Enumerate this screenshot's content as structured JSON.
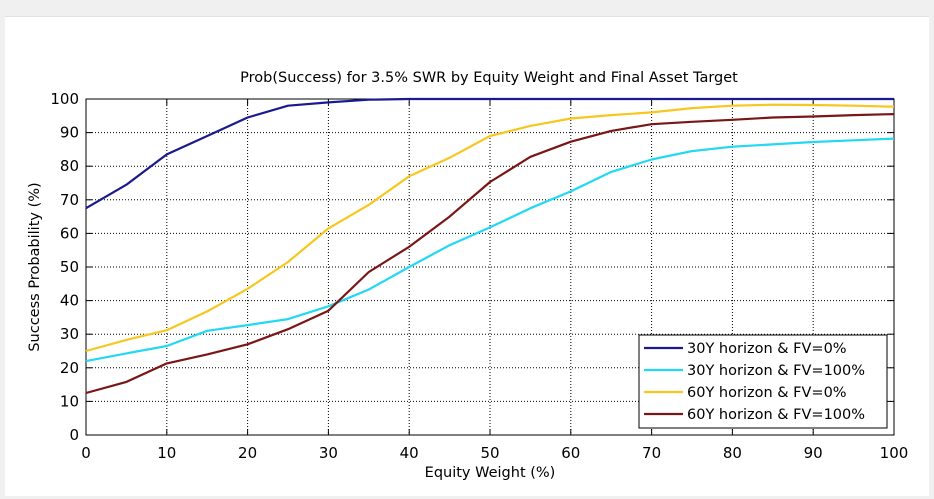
{
  "chart_data": {
    "type": "line",
    "title": "Prob(Success) for 3.5% SWR by Equity Weight and Final Asset Target",
    "xlabel": "Equity Weight (%)",
    "ylabel": "Success Probability (%)",
    "xlim": [
      0,
      100
    ],
    "ylim": [
      0,
      100
    ],
    "xticks": [
      0,
      10,
      20,
      30,
      40,
      50,
      60,
      70,
      80,
      90,
      100
    ],
    "yticks": [
      0,
      10,
      20,
      30,
      40,
      50,
      60,
      70,
      80,
      90,
      100
    ],
    "grid": true,
    "legend_position": "bottom-right",
    "x": [
      0,
      5,
      10,
      15,
      20,
      25,
      30,
      35,
      40,
      45,
      50,
      55,
      60,
      65,
      70,
      75,
      80,
      85,
      90,
      95,
      100
    ],
    "series": [
      {
        "name": "30Y horizon & FV=0%",
        "color": "#1a1a8c",
        "values": [
          67.5,
          74.5,
          83.5,
          89,
          94.5,
          98,
          99,
          99.8,
          100,
          100,
          100,
          100,
          100,
          100,
          100,
          100,
          100,
          100,
          100,
          100,
          100
        ]
      },
      {
        "name": "30Y horizon & FV=100%",
        "color": "#22d8f2",
        "values": [
          22,
          24.3,
          26.5,
          31,
          32.7,
          34.5,
          38.3,
          43.3,
          50,
          56.5,
          61.8,
          67.5,
          72.5,
          78.3,
          82,
          84.5,
          85.8,
          86.5,
          87.2,
          87.7,
          88.2
        ]
      },
      {
        "name": "60Y horizon & FV=0%",
        "color": "#f7c71f",
        "values": [
          25,
          28.3,
          31.2,
          36.8,
          43.5,
          51.5,
          61.5,
          68.5,
          77,
          82.5,
          89,
          92,
          94.2,
          95.2,
          96,
          97.3,
          98,
          98.3,
          98.2,
          98,
          97.7
        ]
      },
      {
        "name": "60Y horizon & FV=100%",
        "color": "#7a1616",
        "values": [
          12.5,
          15.8,
          21.3,
          24,
          27,
          31.5,
          37,
          48.5,
          56,
          65,
          75.3,
          82.8,
          87.3,
          90.5,
          92.5,
          93.2,
          93.8,
          94.5,
          94.8,
          95.2,
          95.5
        ]
      }
    ]
  }
}
